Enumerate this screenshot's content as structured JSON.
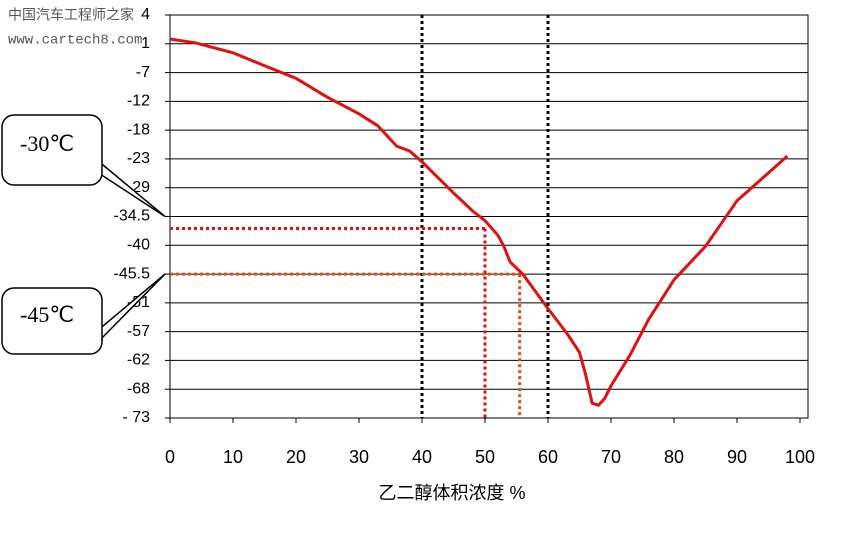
{
  "chart_data": {
    "type": "line",
    "watermark": [
      "中国汽车工程师之家",
      "www.cartech8.com"
    ],
    "xlabel": "乙二醇体积浓度 %",
    "x": [
      0,
      4,
      10,
      15,
      20,
      25,
      30,
      33,
      36,
      38,
      40,
      45,
      48,
      50,
      52,
      53,
      54,
      56,
      58,
      60,
      63,
      65,
      66,
      67,
      68,
      69,
      70,
      73,
      76,
      80,
      85,
      90,
      98
    ],
    "series": [
      {
        "color": "#e01010",
        "values": [
          1.5,
          1.1,
          -1.5,
          -5.1,
          -8,
          -11.3,
          -14.6,
          -17.1,
          -20.8,
          -21.6,
          -23.6,
          -30,
          -33.4,
          -35.3,
          -38,
          -40.2,
          -43.2,
          -45.5,
          -48.8,
          -52.2,
          -57.3,
          -60.6,
          -65.1,
          -70.4,
          -70.8,
          -69.6,
          -67.3,
          -61.1,
          -54.4,
          -46.6,
          -40.2,
          -31.5,
          -22.5
        ]
      }
    ],
    "xlim": [
      0,
      100
    ],
    "xticks": [
      0,
      10,
      20,
      30,
      40,
      50,
      60,
      70,
      80,
      90,
      100
    ],
    "ylim": [
      -73,
      4
    ],
    "yticks": [
      4,
      1,
      -7,
      -12,
      -18,
      -23,
      -29,
      -34.5,
      -40,
      -45.5,
      -51,
      -57,
      -62,
      -68,
      {
        "value": -73,
        "label": "- 73"
      }
    ],
    "grid": true,
    "vlines": [
      {
        "x": 40,
        "color": "#000000"
      },
      {
        "x": 60,
        "color": "#000000"
      }
    ],
    "reference_lines": [
      {
        "x": 50,
        "y": -36.8,
        "color": "#e01010"
      },
      {
        "x": 55.5,
        "y": -45.5,
        "color": "#e05010"
      }
    ],
    "annotations": [
      {
        "text": "-30℃",
        "y": -34.5
      },
      {
        "text": "-45℃",
        "y": -45.5
      }
    ]
  }
}
